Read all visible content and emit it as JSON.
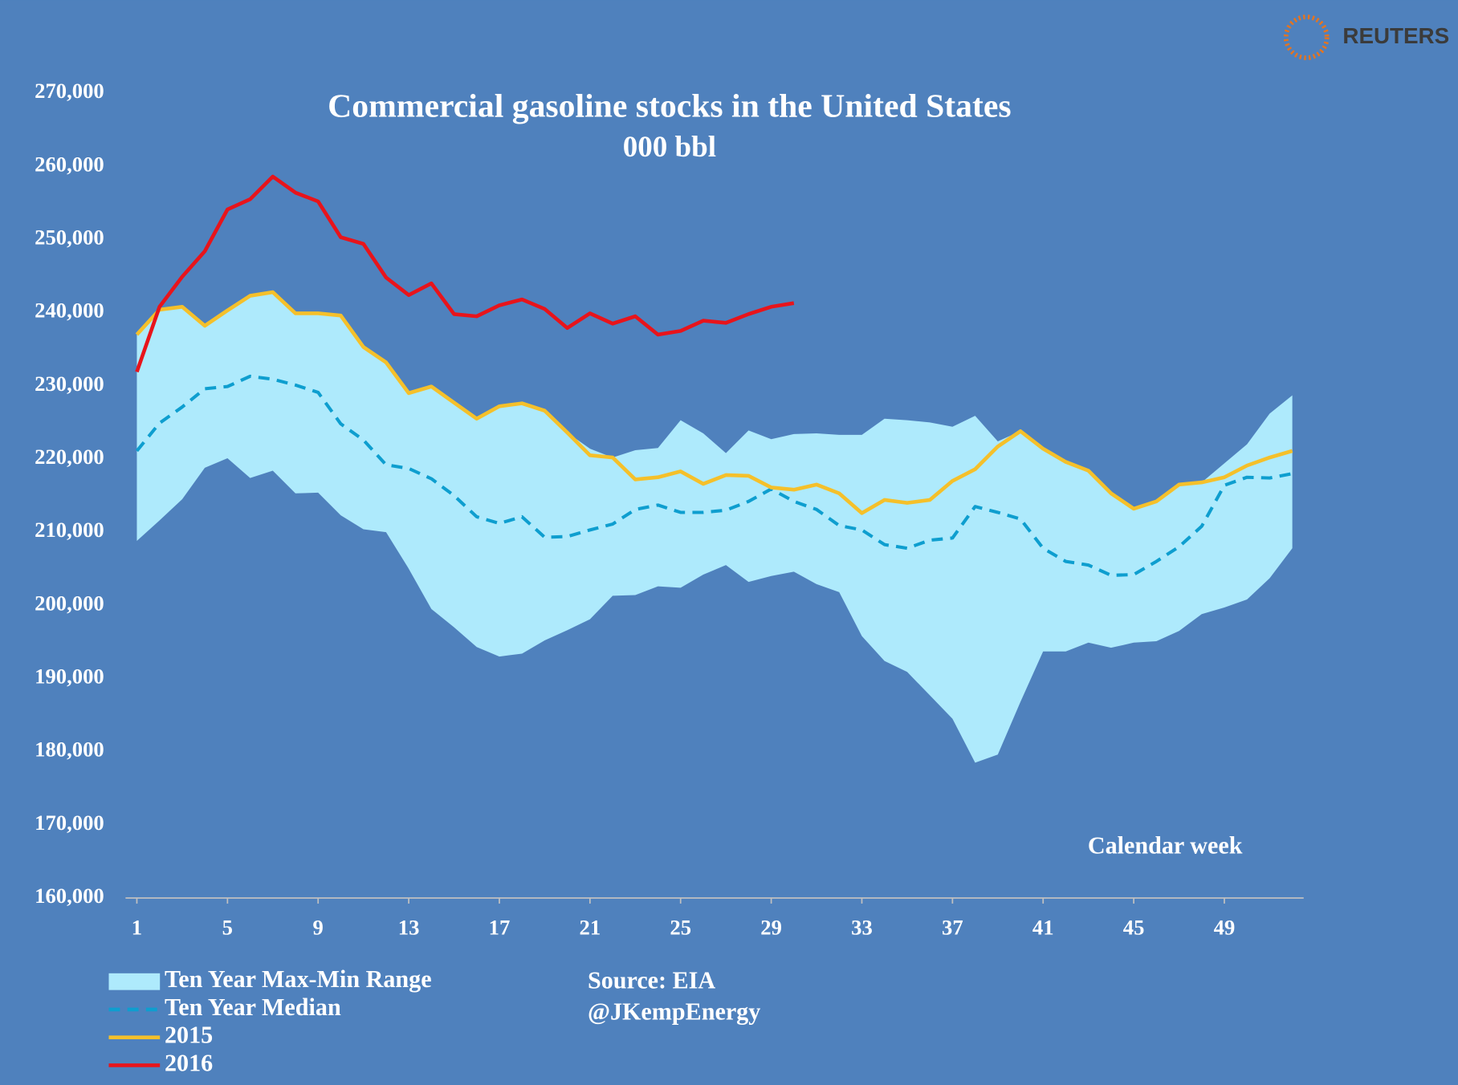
{
  "chart_data": {
    "type": "line",
    "title": "Commercial gasoline stocks in the United States",
    "subtitle": "000 bbl",
    "x_label": "Calendar week",
    "source": "Source: EIA",
    "credit": "@JKempEnergy",
    "logo": "REUTERS",
    "x": [
      1,
      2,
      3,
      4,
      5,
      6,
      7,
      8,
      9,
      10,
      11,
      12,
      13,
      14,
      15,
      16,
      17,
      18,
      19,
      20,
      21,
      22,
      23,
      24,
      25,
      26,
      27,
      28,
      29,
      30,
      31,
      32,
      33,
      34,
      35,
      36,
      37,
      38,
      39,
      40,
      41,
      42,
      43,
      44,
      45,
      46,
      47,
      48,
      49,
      50,
      51,
      52
    ],
    "xlim": [
      0.5,
      52.5
    ],
    "xticks": [
      1,
      5,
      9,
      13,
      17,
      21,
      25,
      29,
      33,
      37,
      41,
      45,
      49
    ],
    "ylim": [
      160000,
      270000
    ],
    "yticks": [
      {
        "value": 160000,
        "label": "160,000"
      },
      {
        "value": 170000,
        "label": "170,000"
      },
      {
        "value": 180000,
        "label": "180,000"
      },
      {
        "value": 190000,
        "label": "190,000"
      },
      {
        "value": 200000,
        "label": "200,000"
      },
      {
        "value": 210000,
        "label": "210,000"
      },
      {
        "value": 220000,
        "label": "220,000"
      },
      {
        "value": 230000,
        "label": "230,000"
      },
      {
        "value": 240000,
        "label": "240,000"
      },
      {
        "value": 250000,
        "label": "250,000"
      },
      {
        "value": 260000,
        "label": "260,000"
      },
      {
        "value": 270000,
        "label": "270,000"
      }
    ],
    "series": [
      {
        "name": "Ten Year Max-Min Range",
        "kind": "band",
        "color": "#aeeafc",
        "upper": [
          237000,
          240400,
          240800,
          238200,
          240300,
          242300,
          242800,
          239900,
          239900,
          239600,
          235300,
          233200,
          229000,
          229900,
          227700,
          225500,
          227200,
          227600,
          226600,
          223600,
          221400,
          220200,
          221200,
          221500,
          225300,
          223500,
          220800,
          223900,
          222700,
          223400,
          223500,
          223300,
          223300,
          225500,
          225300,
          225000,
          224400,
          225900,
          222400,
          223800,
          221400,
          219600,
          218400,
          215300,
          213200,
          214200,
          216500,
          216800,
          219400,
          222000,
          226200,
          228700
        ],
        "lower": [
          208800,
          211600,
          214500,
          218800,
          220100,
          217400,
          218400,
          215300,
          215400,
          212300,
          210400,
          210000,
          205000,
          199500,
          197000,
          194300,
          193000,
          193400,
          195200,
          196600,
          198100,
          201300,
          201400,
          202600,
          202400,
          204200,
          205500,
          203200,
          204000,
          204600,
          202900,
          201800,
          195800,
          192400,
          190900,
          187700,
          184500,
          178500,
          179600,
          186800,
          193700,
          193700,
          194900,
          194200,
          194900,
          195100,
          196500,
          198800,
          199700,
          200800,
          203700,
          207800
        ]
      },
      {
        "name": "Ten Year Median",
        "kind": "dashed",
        "color": "#0e9ecf",
        "values": [
          221100,
          224900,
          227100,
          229600,
          229900,
          231300,
          230900,
          230100,
          229100,
          224800,
          222600,
          219200,
          218700,
          217300,
          215000,
          212100,
          211200,
          212100,
          209300,
          209400,
          210300,
          211100,
          213100,
          213700,
          212700,
          212700,
          213000,
          214200,
          215900,
          214200,
          213100,
          210900,
          210300,
          208300,
          207800,
          208900,
          209200,
          213500,
          212700,
          211800,
          207800,
          206000,
          205500,
          204100,
          204200,
          206000,
          208000,
          210800,
          216400,
          217500,
          217400,
          218000
        ]
      },
      {
        "name": "2015",
        "kind": "solid",
        "color": "#f5c02a",
        "values": [
          237000,
          240400,
          240800,
          238200,
          240300,
          242300,
          242800,
          239900,
          239900,
          239600,
          235300,
          233200,
          229000,
          229900,
          227700,
          225500,
          227200,
          227600,
          226600,
          223600,
          220500,
          220200,
          217200,
          217500,
          218300,
          216600,
          217800,
          217700,
          216100,
          215800,
          216500,
          215300,
          212600,
          214400,
          214000,
          214400,
          217000,
          218600,
          221700,
          223800,
          221400,
          219600,
          218400,
          215300,
          213200,
          214200,
          216500,
          216800,
          217500,
          219100,
          220200,
          221100
        ]
      },
      {
        "name": "2016",
        "kind": "solid",
        "color": "#e8141b",
        "values": [
          231900,
          240800,
          244900,
          248400,
          254100,
          255500,
          258600,
          256400,
          255200,
          250300,
          249400,
          244800,
          242400,
          244000,
          239800,
          239500,
          241000,
          241800,
          240500,
          237900,
          239900,
          238500,
          239500,
          237000,
          237500,
          238900,
          238600,
          239800,
          240800,
          241300,
          null,
          null,
          null,
          null,
          null,
          null,
          null,
          null,
          null,
          null,
          null,
          null,
          null,
          null,
          null,
          null,
          null,
          null,
          null,
          null,
          null,
          null
        ]
      }
    ]
  }
}
